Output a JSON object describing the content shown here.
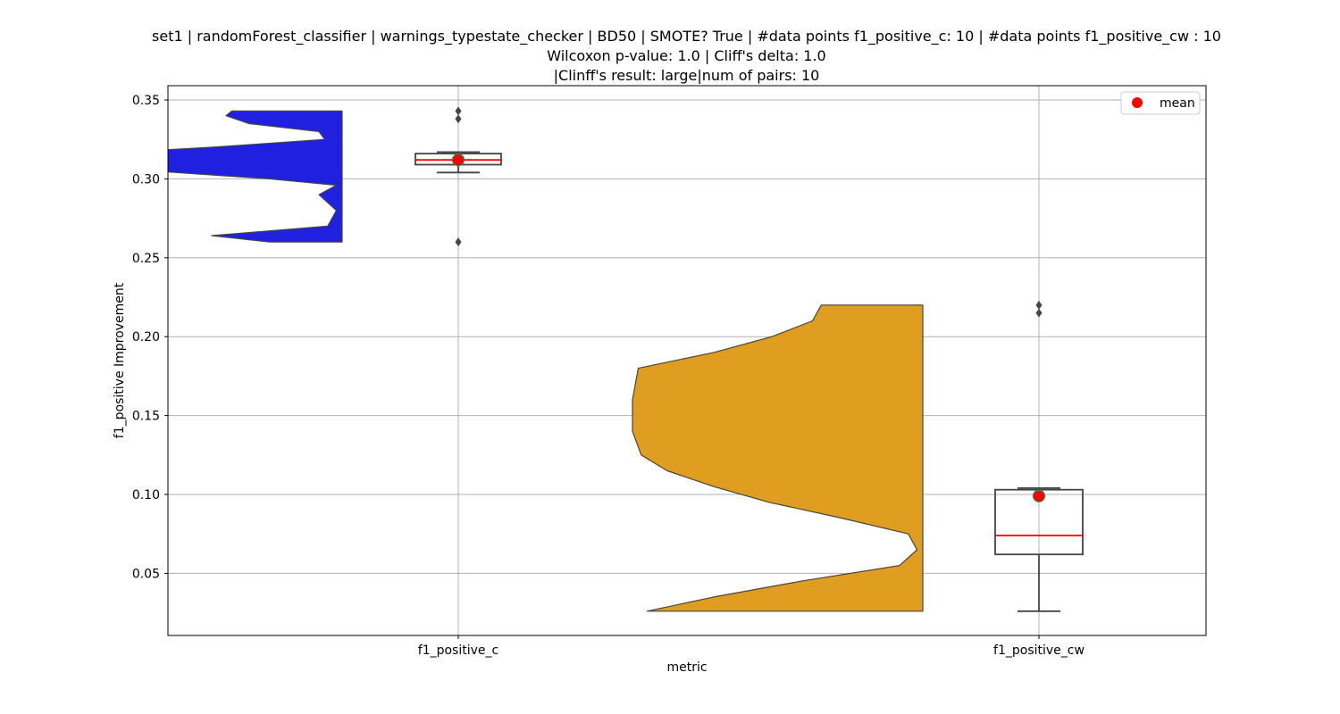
{
  "title_lines": [
    "set1 | randomForest_classifier | warnings_typestate_checker | BD50 | SMOTE? True | #data points f1_positive_c: 10 | #data points f1_positive_cw : 10",
    "Wilcoxon p-value: 1.0 | Cliff's delta: 1.0",
    "|Clinff's result: large|num of pairs: 10"
  ],
  "chart_data": {
    "type": "violin+box",
    "xlabel": "metric",
    "ylabel": "f1_positive Improvement",
    "ylim": [
      0.01,
      0.357
    ],
    "yticks": [
      "0.05",
      "0.10",
      "0.15",
      "0.20",
      "0.25",
      "0.30",
      "0.35"
    ],
    "ytick_values": [
      0.05,
      0.1,
      0.15,
      0.2,
      0.25,
      0.3,
      0.35
    ],
    "grid": true,
    "legend": {
      "label": "mean",
      "placement": "top-right"
    },
    "categories": [
      "f1_positive_c",
      "f1_positive_cw"
    ],
    "series": [
      {
        "name": "f1_positive_c",
        "color": "#2020e0",
        "violin": {
          "y_min": 0.26,
          "y_max": 0.343,
          "profile": [
            [
              0.26,
              0.25
            ],
            [
              0.264,
              0.45
            ],
            [
              0.27,
              0.05
            ],
            [
              0.28,
              0.02
            ],
            [
              0.29,
              0.08
            ],
            [
              0.296,
              0.02
            ],
            [
              0.3,
              0.25
            ],
            [
              0.305,
              0.65
            ],
            [
              0.31,
              1.0
            ],
            [
              0.315,
              0.95
            ],
            [
              0.32,
              0.45
            ],
            [
              0.325,
              0.06
            ],
            [
              0.33,
              0.08
            ],
            [
              0.335,
              0.32
            ],
            [
              0.34,
              0.4
            ],
            [
              0.343,
              0.38
            ]
          ]
        },
        "box": {
          "whisker_low": 0.304,
          "q1": 0.309,
          "median": 0.312,
          "q3": 0.316,
          "whisker_high": 0.317
        },
        "outliers": [
          0.26,
          0.338,
          0.343
        ],
        "mean": 0.312
      },
      {
        "name": "f1_positive_cw",
        "color": "#e09e20",
        "violin": {
          "y_min": 0.026,
          "y_max": 0.22,
          "profile": [
            [
              0.026,
              0.95
            ],
            [
              0.035,
              0.72
            ],
            [
              0.045,
              0.42
            ],
            [
              0.055,
              0.08
            ],
            [
              0.065,
              0.02
            ],
            [
              0.075,
              0.05
            ],
            [
              0.085,
              0.28
            ],
            [
              0.095,
              0.53
            ],
            [
              0.105,
              0.72
            ],
            [
              0.115,
              0.88
            ],
            [
              0.125,
              0.97
            ],
            [
              0.14,
              1.0
            ],
            [
              0.16,
              1.0
            ],
            [
              0.18,
              0.98
            ],
            [
              0.19,
              0.72
            ],
            [
              0.2,
              0.52
            ],
            [
              0.21,
              0.38
            ],
            [
              0.22,
              0.35
            ]
          ]
        },
        "box": {
          "whisker_low": 0.026,
          "q1": 0.062,
          "median": 0.074,
          "q3": 0.103,
          "whisker_high": 0.104
        },
        "outliers": [
          0.215,
          0.22
        ],
        "mean": 0.099
      }
    ]
  }
}
